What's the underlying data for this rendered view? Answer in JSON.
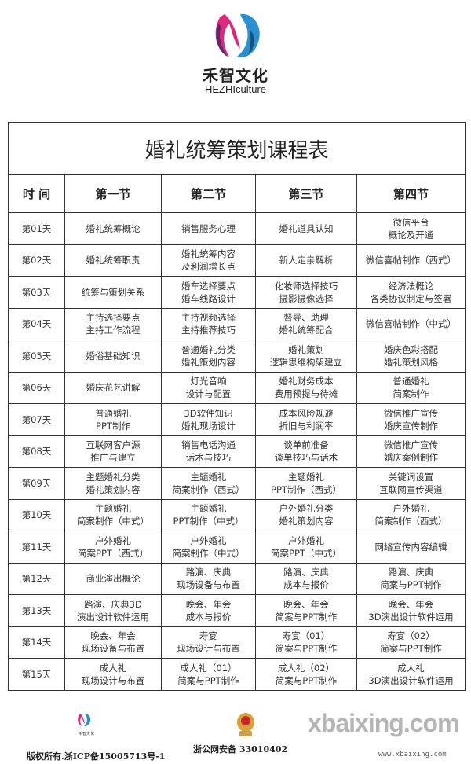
{
  "brand": {
    "name_cn": "禾智文化",
    "name_en": "HEZHIculture",
    "colors": {
      "magenta": "#e0287a",
      "blue": "#2b8fd0",
      "purple": "#5a2a6a"
    }
  },
  "table": {
    "title": "婚礼统筹策划课程表",
    "headers": [
      "时 间",
      "第一节",
      "第二节",
      "第三节",
      "第四节"
    ],
    "rows": [
      [
        "第01天",
        "婚礼统筹概论",
        "销售服务心理",
        "婚礼道具认知",
        "微信平台\n概论及开通"
      ],
      [
        "第02天",
        "婚礼统筹职责",
        "婚礼统筹内容\n及利润增长点",
        "新人定亲解析",
        "微信喜帖制作（西式）"
      ],
      [
        "第03天",
        "统筹与策划关系",
        "婚车选择要点\n婚车线路设计",
        "化妆师选择技巧\n摄影摄像选择",
        "经济法概论\n各类协议制定与签署"
      ],
      [
        "第04天",
        "主持选择要点\n主持工作流程",
        "主持视频选择\n主持推荐技巧",
        "督导、助理\n婚礼统筹配合",
        "微信喜帖制作（中式）"
      ],
      [
        "第05天",
        "婚俗基础知识",
        "普通婚礼分类\n婚礼策划内容",
        "婚礼策划\n逻辑思维构架建立",
        "婚庆色彩搭配\n婚礼策划风格"
      ],
      [
        "第06天",
        "婚庆花艺讲解",
        "灯光音响\n设计与配置",
        "婚礼财务成本\n费用预提与待摊",
        "普通婚礼\n简案制作"
      ],
      [
        "第07天",
        "普通婚礼\nPPT制作",
        "3D软件知识\n婚礼现场设计",
        "成本风险规避\n折旧与利润率",
        "微信推广宣传\n婚庆宣传制作"
      ],
      [
        "第08天",
        "互联网客户源\n推广与建立",
        "销售电话沟通\n话术与技巧",
        "谈单前准备\n谈单技巧与话术",
        "微信推广宣传\n婚庆案例制作"
      ],
      [
        "第09天",
        "主题婚礼分类\n婚礼策划内容",
        "主题婚礼\n简案制作（西式）",
        "主题婚礼\nPPT制作（西式）",
        "关键词设置\n互联网宣传渠道"
      ],
      [
        "第10天",
        "主题婚礼\n简案制作（中式）",
        "主题婚礼\nPPT制作（中式）",
        "户外婚礼分类\n婚礼策划内容",
        "户外婚礼\n简案制作（西式）"
      ],
      [
        "第11天",
        "户外婚礼\n简案PPT（西式）",
        "户外婚礼\n简案制作（中式）",
        "户外婚礼\n简案PPT（中式）",
        "网络宣传内容编辑"
      ],
      [
        "第12天",
        "商业演出概论",
        "路演、庆典\n现场设备与布置",
        "路演、庆典\n成本与报价",
        "路演、庆典\n简案与PPT制作"
      ],
      [
        "第13天",
        "路演、庆典3D\n演出设计软件运用",
        "晚会、年会\n成本与报价",
        "晚会、年会\n简案与PPT制作",
        "晚会、年会\n3D演出设计软件运用"
      ],
      [
        "第14天",
        "晚会、年会\n现场设备与布置",
        "寿宴\n现场设计与布置",
        "寿宴（01）\n简案与PPT制作",
        "寿宴（02）\n简案与PPT制作"
      ],
      [
        "第15天",
        "成人礼\n现场设计与布置",
        "成人礼（01）\n简案与PPT制作",
        "成人礼（02）\n简案与PPT制作",
        "成人礼\n3D演出设计软件运用"
      ]
    ]
  },
  "footer": {
    "logo_text": "禾智文化",
    "icp": "版权所有.浙ICP备15005713号-1",
    "police": "浙公网安备 33010402",
    "watermark": "xbaixing.com",
    "watermark_url": "www.xbaixing.com"
  }
}
